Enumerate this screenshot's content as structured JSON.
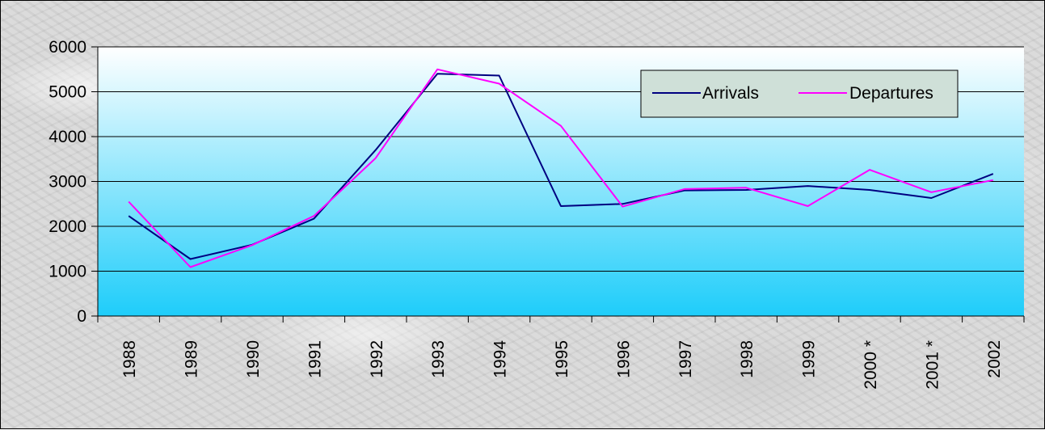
{
  "chart_data": {
    "type": "line",
    "title": "",
    "xlabel": "",
    "ylabel": "",
    "categories": [
      "1988",
      "1989",
      "1990",
      "1991",
      "1992",
      "1993",
      "1994",
      "1995",
      "1996",
      "1997",
      "1998",
      "1999",
      "2000 *",
      "2001 *",
      "2002"
    ],
    "ylim": [
      0,
      6000
    ],
    "yticks": [
      0,
      1000,
      2000,
      3000,
      4000,
      5000,
      6000
    ],
    "grid": true,
    "legend_position": "top-right",
    "series": [
      {
        "name": "Arrivals",
        "color": "#000080",
        "values": [
          2230,
          1270,
          1590,
          2170,
          3700,
          5400,
          5360,
          2450,
          2500,
          2800,
          2810,
          2900,
          2810,
          2630,
          3170
        ]
      },
      {
        "name": "Departures",
        "color": "#ff00ff",
        "values": [
          2550,
          1090,
          1580,
          2230,
          3520,
          5500,
          5180,
          4240,
          2440,
          2830,
          2860,
          2450,
          3260,
          2760,
          3030
        ]
      }
    ]
  },
  "colors": {
    "plot_top": "#ffffff",
    "plot_bottom": "#1ecdfa",
    "legend_bg": "#cfe0d8"
  }
}
